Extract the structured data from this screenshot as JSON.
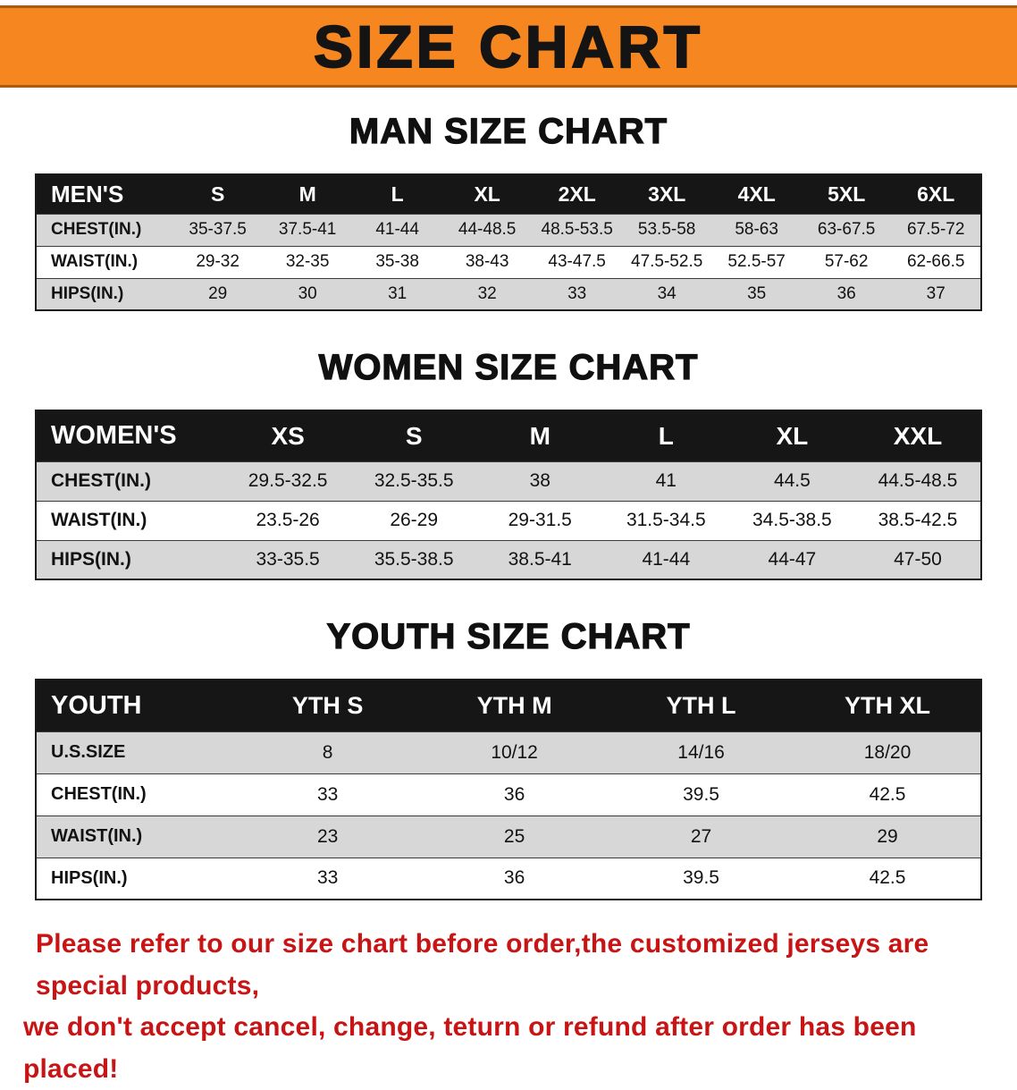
{
  "banner": {
    "title": "SIZE CHART",
    "bg_color": "#f6861f"
  },
  "sections": [
    {
      "id": "men",
      "heading": "MAN SIZE CHART",
      "table": {
        "header": [
          "MEN'S",
          "S",
          "M",
          "L",
          "XL",
          "2XL",
          "3XL",
          "4XL",
          "5XL",
          "6XL"
        ],
        "rows": [
          {
            "label": "CHEST(IN.)",
            "values": [
              "35-37.5",
              "37.5-41",
              "41-44",
              "44-48.5",
              "48.5-53.5",
              "53.5-58",
              "58-63",
              "63-67.5",
              "67.5-72"
            ]
          },
          {
            "label": "WAIST(IN.)",
            "values": [
              "29-32",
              "32-35",
              "35-38",
              "38-43",
              "43-47.5",
              "47.5-52.5",
              "52.5-57",
              "57-62",
              "62-66.5"
            ]
          },
          {
            "label": "HIPS(IN.)",
            "values": [
              "29",
              "30",
              "31",
              "32",
              "33",
              "34",
              "35",
              "36",
              "37"
            ]
          }
        ]
      }
    },
    {
      "id": "women",
      "heading": "WOMEN SIZE CHART",
      "table": {
        "header": [
          "WOMEN'S",
          "XS",
          "S",
          "M",
          "L",
          "XL",
          "XXL"
        ],
        "rows": [
          {
            "label": "CHEST(IN.)",
            "values": [
              "29.5-32.5",
              "32.5-35.5",
              "38",
              "41",
              "44.5",
              "44.5-48.5"
            ]
          },
          {
            "label": "WAIST(IN.)",
            "values": [
              "23.5-26",
              "26-29",
              "29-31.5",
              "31.5-34.5",
              "34.5-38.5",
              "38.5-42.5"
            ]
          },
          {
            "label": "HIPS(IN.)",
            "values": [
              "33-35.5",
              "35.5-38.5",
              "38.5-41",
              "41-44",
              "44-47",
              "47-50"
            ]
          }
        ]
      }
    },
    {
      "id": "youth",
      "heading": "YOUTH SIZE CHART",
      "table": {
        "header": [
          "YOUTH",
          "YTH S",
          "YTH M",
          "YTH L",
          "YTH XL"
        ],
        "rows": [
          {
            "label": "U.S.SIZE",
            "values": [
              "8",
              "10/12",
              "14/16",
              "18/20"
            ]
          },
          {
            "label": "CHEST(IN.)",
            "values": [
              "33",
              "36",
              "39.5",
              "42.5"
            ]
          },
          {
            "label": "WAIST(IN.)",
            "values": [
              "23",
              "25",
              "27",
              "29"
            ]
          },
          {
            "label": "HIPS(IN.)",
            "values": [
              "33",
              "36",
              "39.5",
              "42.5"
            ]
          }
        ]
      }
    }
  ],
  "disclaimer": {
    "color": "#c81414",
    "line1": "Please refer to our size chart before order,the customized jerseys are special products,",
    "line2": "we don't accept cancel, change, teturn or refund after order has been placed!"
  }
}
